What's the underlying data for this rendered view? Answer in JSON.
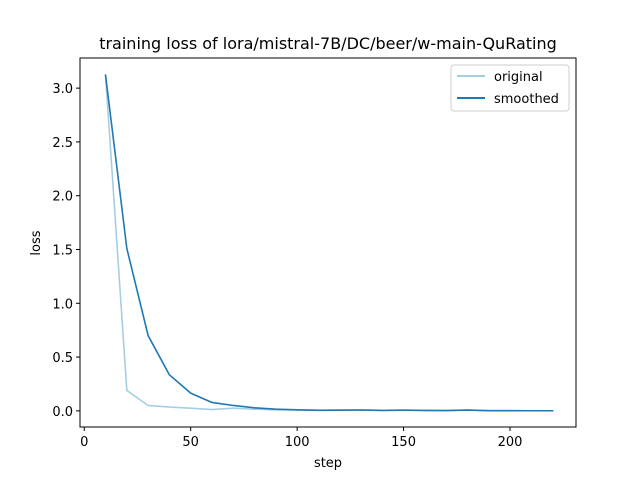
{
  "chart_data": {
    "type": "line",
    "title": "training loss of lora/mistral-7B/DC/beer/w-main-QuRating",
    "xlabel": "step",
    "ylabel": "loss",
    "xlim": [
      -2,
      231
    ],
    "ylim": [
      -0.15,
      3.28
    ],
    "xticks": [
      0,
      50,
      100,
      150,
      200
    ],
    "xtick_labels": [
      "0",
      "50",
      "100",
      "150",
      "200"
    ],
    "yticks": [
      0.0,
      0.5,
      1.0,
      1.5,
      2.0,
      2.5,
      3.0
    ],
    "ytick_labels": [
      "0.0",
      "0.5",
      "1.0",
      "1.5",
      "2.0",
      "2.5",
      "3.0"
    ],
    "grid": false,
    "legend": "top-right",
    "x": [
      10,
      20,
      30,
      40,
      50,
      60,
      70,
      80,
      90,
      100,
      110,
      120,
      130,
      140,
      150,
      160,
      170,
      180,
      190,
      200,
      210,
      220
    ],
    "series": [
      {
        "name": "original",
        "color": "#a6cee3",
        "values": [
          3.12,
          0.19,
          0.05,
          0.035,
          0.025,
          0.012,
          0.025,
          0.015,
          0.01,
          0.008,
          0.006,
          0.008,
          0.01,
          0.005,
          0.008,
          0.004,
          0.003,
          0.008,
          0.002,
          0.002,
          0.001,
          0.001
        ]
      },
      {
        "name": "smoothed",
        "color": "#1f78b4",
        "values": [
          3.12,
          1.51,
          0.7,
          0.335,
          0.165,
          0.078,
          0.05,
          0.028,
          0.016,
          0.01,
          0.005,
          0.006,
          0.008,
          0.004,
          0.006,
          0.004,
          0.003,
          0.007,
          0.002,
          0.002,
          0.001,
          0.001
        ]
      }
    ]
  }
}
